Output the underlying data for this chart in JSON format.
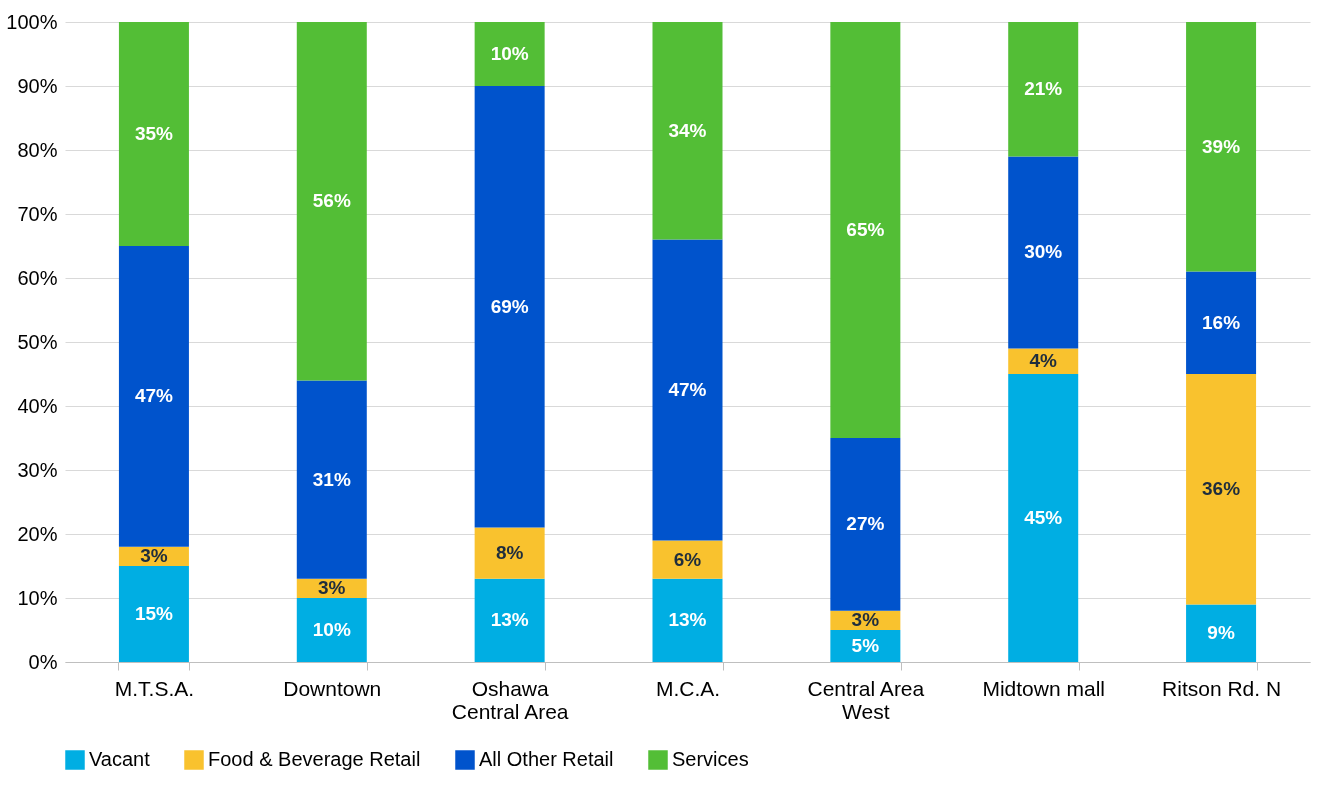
{
  "chart_data": {
    "type": "bar",
    "stacked": true,
    "grid": "y",
    "legend": "bottom",
    "categories": [
      "M.T.S.A.",
      "Downtown",
      "Oshawa Central Area",
      "M.C.A.",
      "Central Area West",
      "Midtown mall",
      "Ritson Rd. N"
    ],
    "ylim": [
      0,
      100
    ],
    "yticks": [
      {
        "value": 0,
        "label": "0%"
      },
      {
        "value": 10,
        "label": "10%"
      },
      {
        "value": 20,
        "label": "20%"
      },
      {
        "value": 30,
        "label": "30%"
      },
      {
        "value": 40,
        "label": "40%"
      },
      {
        "value": 50,
        "label": "50%"
      },
      {
        "value": 60,
        "label": "60%"
      },
      {
        "value": 70,
        "label": "70%"
      },
      {
        "value": 80,
        "label": "80%"
      },
      {
        "value": 90,
        "label": "90%"
      },
      {
        "value": 100,
        "label": "100%"
      }
    ],
    "series": [
      {
        "name": "Vacant",
        "color": "#00aee3",
        "values": [
          15,
          10,
          13,
          13,
          5,
          45,
          9
        ],
        "value_labels": [
          "15%",
          "10%",
          "13%",
          "13%",
          "5%",
          "45%",
          "9%"
        ]
      },
      {
        "name": "Food & Beverage Retail",
        "color": "#f9c22e",
        "values": [
          3,
          3,
          8,
          6,
          3,
          4,
          36
        ],
        "value_labels": [
          "3%",
          "3%",
          "8%",
          "6%",
          "3%",
          "4%",
          "36%"
        ]
      },
      {
        "name": "All Other Retail",
        "color": "#0053cc",
        "values": [
          47,
          31,
          69,
          47,
          27,
          30,
          16
        ],
        "value_labels": [
          "47%",
          "31%",
          "69%",
          "47%",
          "27%",
          "30%",
          "16%"
        ]
      },
      {
        "name": "Services",
        "color": "#53be36",
        "values": [
          35,
          56,
          10,
          34,
          65,
          21,
          39
        ],
        "value_labels": [
          "35%",
          "56%",
          "10%",
          "34%",
          "65%",
          "21%",
          "39%"
        ]
      }
    ]
  }
}
